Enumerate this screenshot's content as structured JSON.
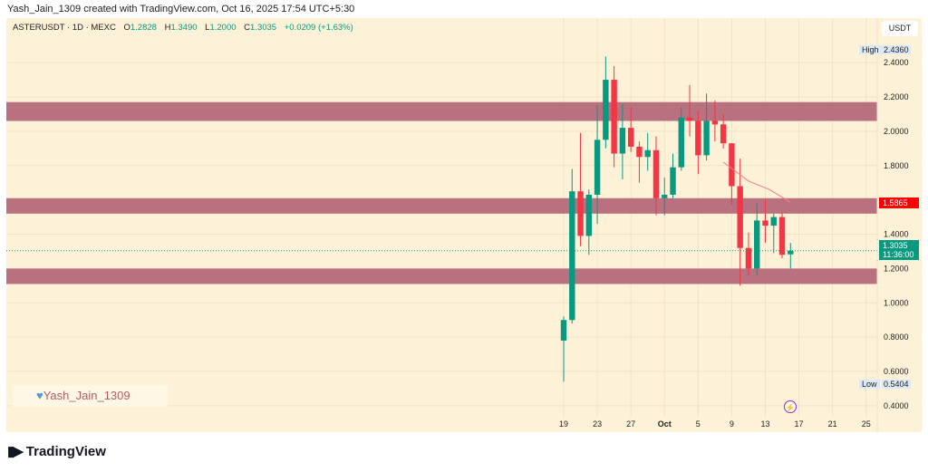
{
  "caption": "Yash_Jain_1309 created with TradingView.com, Oct 16, 2025 17:54 UTC+5:30",
  "legend": {
    "symbol": "ASTERUSDT · 1D · MEXC",
    "open_key": "O",
    "open": "1.2828",
    "high_key": "H",
    "high": "1.3490",
    "low_key": "L",
    "low": "1.2000",
    "close_key": "C",
    "close": "1.3035",
    "change": "+0.0209 (+1.63%)"
  },
  "price_scale": {
    "unit": "USDT",
    "high_tag": "High",
    "high_value": "2.4360",
    "low_tag": "Low",
    "low_value": "0.5404",
    "line_value": "1.5865",
    "last_price": "1.3035",
    "countdown": "11:36:00"
  },
  "watermark": "Yash_Jain_1309",
  "brand": "TradingView",
  "colors": {
    "up": "#089981",
    "down": "#f23645",
    "zone": "#b9707f",
    "line": "#f77c80",
    "bg": "#fdf1d7"
  },
  "chart_data": {
    "type": "candlestick",
    "title": "ASTERUSDT 1D MEXC",
    "ylabel": "USDT",
    "ylim": [
      0.36,
      2.5
    ],
    "yticks": [
      "0.4000",
      "0.6000",
      "0.8000",
      "1.0000",
      "1.2000",
      "1.4000",
      "1.8000",
      "2.0000",
      "2.2000",
      "2.4000"
    ],
    "xticks": [
      {
        "day": 0,
        "label": "19"
      },
      {
        "day": 4,
        "label": "23"
      },
      {
        "day": 8,
        "label": "27"
      },
      {
        "day": 12,
        "label": "Oct"
      },
      {
        "day": 16,
        "label": "5"
      },
      {
        "day": 20,
        "label": "9"
      },
      {
        "day": 24,
        "label": "13"
      },
      {
        "day": 28,
        "label": "17"
      },
      {
        "day": 32,
        "label": "21"
      },
      {
        "day": 36,
        "label": "25"
      }
    ],
    "candles": [
      {
        "date": "Sep 19",
        "o": 0.78,
        "h": 0.92,
        "l": 0.54,
        "c": 0.9
      },
      {
        "date": "Sep 20",
        "o": 0.9,
        "h": 1.78,
        "l": 0.88,
        "c": 1.65
      },
      {
        "date": "Sep 21",
        "o": 1.65,
        "h": 1.99,
        "l": 1.33,
        "c": 1.39
      },
      {
        "date": "Sep 22",
        "o": 1.39,
        "h": 1.66,
        "l": 1.28,
        "c": 1.63
      },
      {
        "date": "Sep 23",
        "o": 1.63,
        "h": 2.15,
        "l": 1.46,
        "c": 1.95
      },
      {
        "date": "Sep 24",
        "o": 1.95,
        "h": 2.436,
        "l": 1.9,
        "c": 2.3
      },
      {
        "date": "Sep 25",
        "o": 2.3,
        "h": 2.38,
        "l": 1.79,
        "c": 1.87
      },
      {
        "date": "Sep 26",
        "o": 1.87,
        "h": 2.16,
        "l": 1.72,
        "c": 2.02
      },
      {
        "date": "Sep 27",
        "o": 2.02,
        "h": 2.14,
        "l": 1.88,
        "c": 1.91
      },
      {
        "date": "Sep 28",
        "o": 1.91,
        "h": 1.94,
        "l": 1.7,
        "c": 1.85
      },
      {
        "date": "Sep 29",
        "o": 1.85,
        "h": 1.99,
        "l": 1.77,
        "c": 1.89
      },
      {
        "date": "Sep 30",
        "o": 1.89,
        "h": 1.97,
        "l": 1.51,
        "c": 1.61
      },
      {
        "date": "Oct 1",
        "o": 1.61,
        "h": 1.73,
        "l": 1.51,
        "c": 1.63
      },
      {
        "date": "Oct 2",
        "o": 1.63,
        "h": 1.87,
        "l": 1.61,
        "c": 1.79
      },
      {
        "date": "Oct 3",
        "o": 1.79,
        "h": 2.14,
        "l": 1.77,
        "c": 2.08
      },
      {
        "date": "Oct 4",
        "o": 2.08,
        "h": 2.27,
        "l": 1.97,
        "c": 2.06
      },
      {
        "date": "Oct 5",
        "o": 2.06,
        "h": 2.12,
        "l": 1.75,
        "c": 1.86
      },
      {
        "date": "Oct 6",
        "o": 1.86,
        "h": 2.22,
        "l": 1.83,
        "c": 2.06
      },
      {
        "date": "Oct 7",
        "o": 2.06,
        "h": 2.18,
        "l": 1.94,
        "c": 2.04
      },
      {
        "date": "Oct 8",
        "o": 2.04,
        "h": 2.1,
        "l": 1.9,
        "c": 1.93
      },
      {
        "date": "Oct 9",
        "o": 1.93,
        "h": 1.93,
        "l": 1.57,
        "c": 1.68
      },
      {
        "date": "Oct 10",
        "o": 1.68,
        "h": 1.84,
        "l": 1.1,
        "c": 1.32
      },
      {
        "date": "Oct 11",
        "o": 1.32,
        "h": 1.41,
        "l": 1.16,
        "c": 1.2
      },
      {
        "date": "Oct 12",
        "o": 1.2,
        "h": 1.58,
        "l": 1.16,
        "c": 1.48
      },
      {
        "date": "Oct 13",
        "o": 1.48,
        "h": 1.6,
        "l": 1.35,
        "c": 1.45
      },
      {
        "date": "Oct 14",
        "o": 1.45,
        "h": 1.52,
        "l": 1.29,
        "c": 1.5
      },
      {
        "date": "Oct 15",
        "o": 1.5,
        "h": 1.53,
        "l": 1.26,
        "c": 1.28
      },
      {
        "date": "Oct 16",
        "o": 1.2828,
        "h": 1.349,
        "l": 1.2,
        "c": 1.3035
      }
    ],
    "line": [
      {
        "day": 19,
        "v": 1.82
      },
      {
        "day": 22,
        "v": 1.71
      },
      {
        "day": 24.5,
        "v": 1.66
      },
      {
        "day": 27,
        "v": 1.5865
      }
    ],
    "zones": [
      {
        "from": 2.06,
        "to": 2.17
      },
      {
        "from": 1.52,
        "to": 1.61
      },
      {
        "from": 1.11,
        "to": 1.2
      }
    ]
  }
}
